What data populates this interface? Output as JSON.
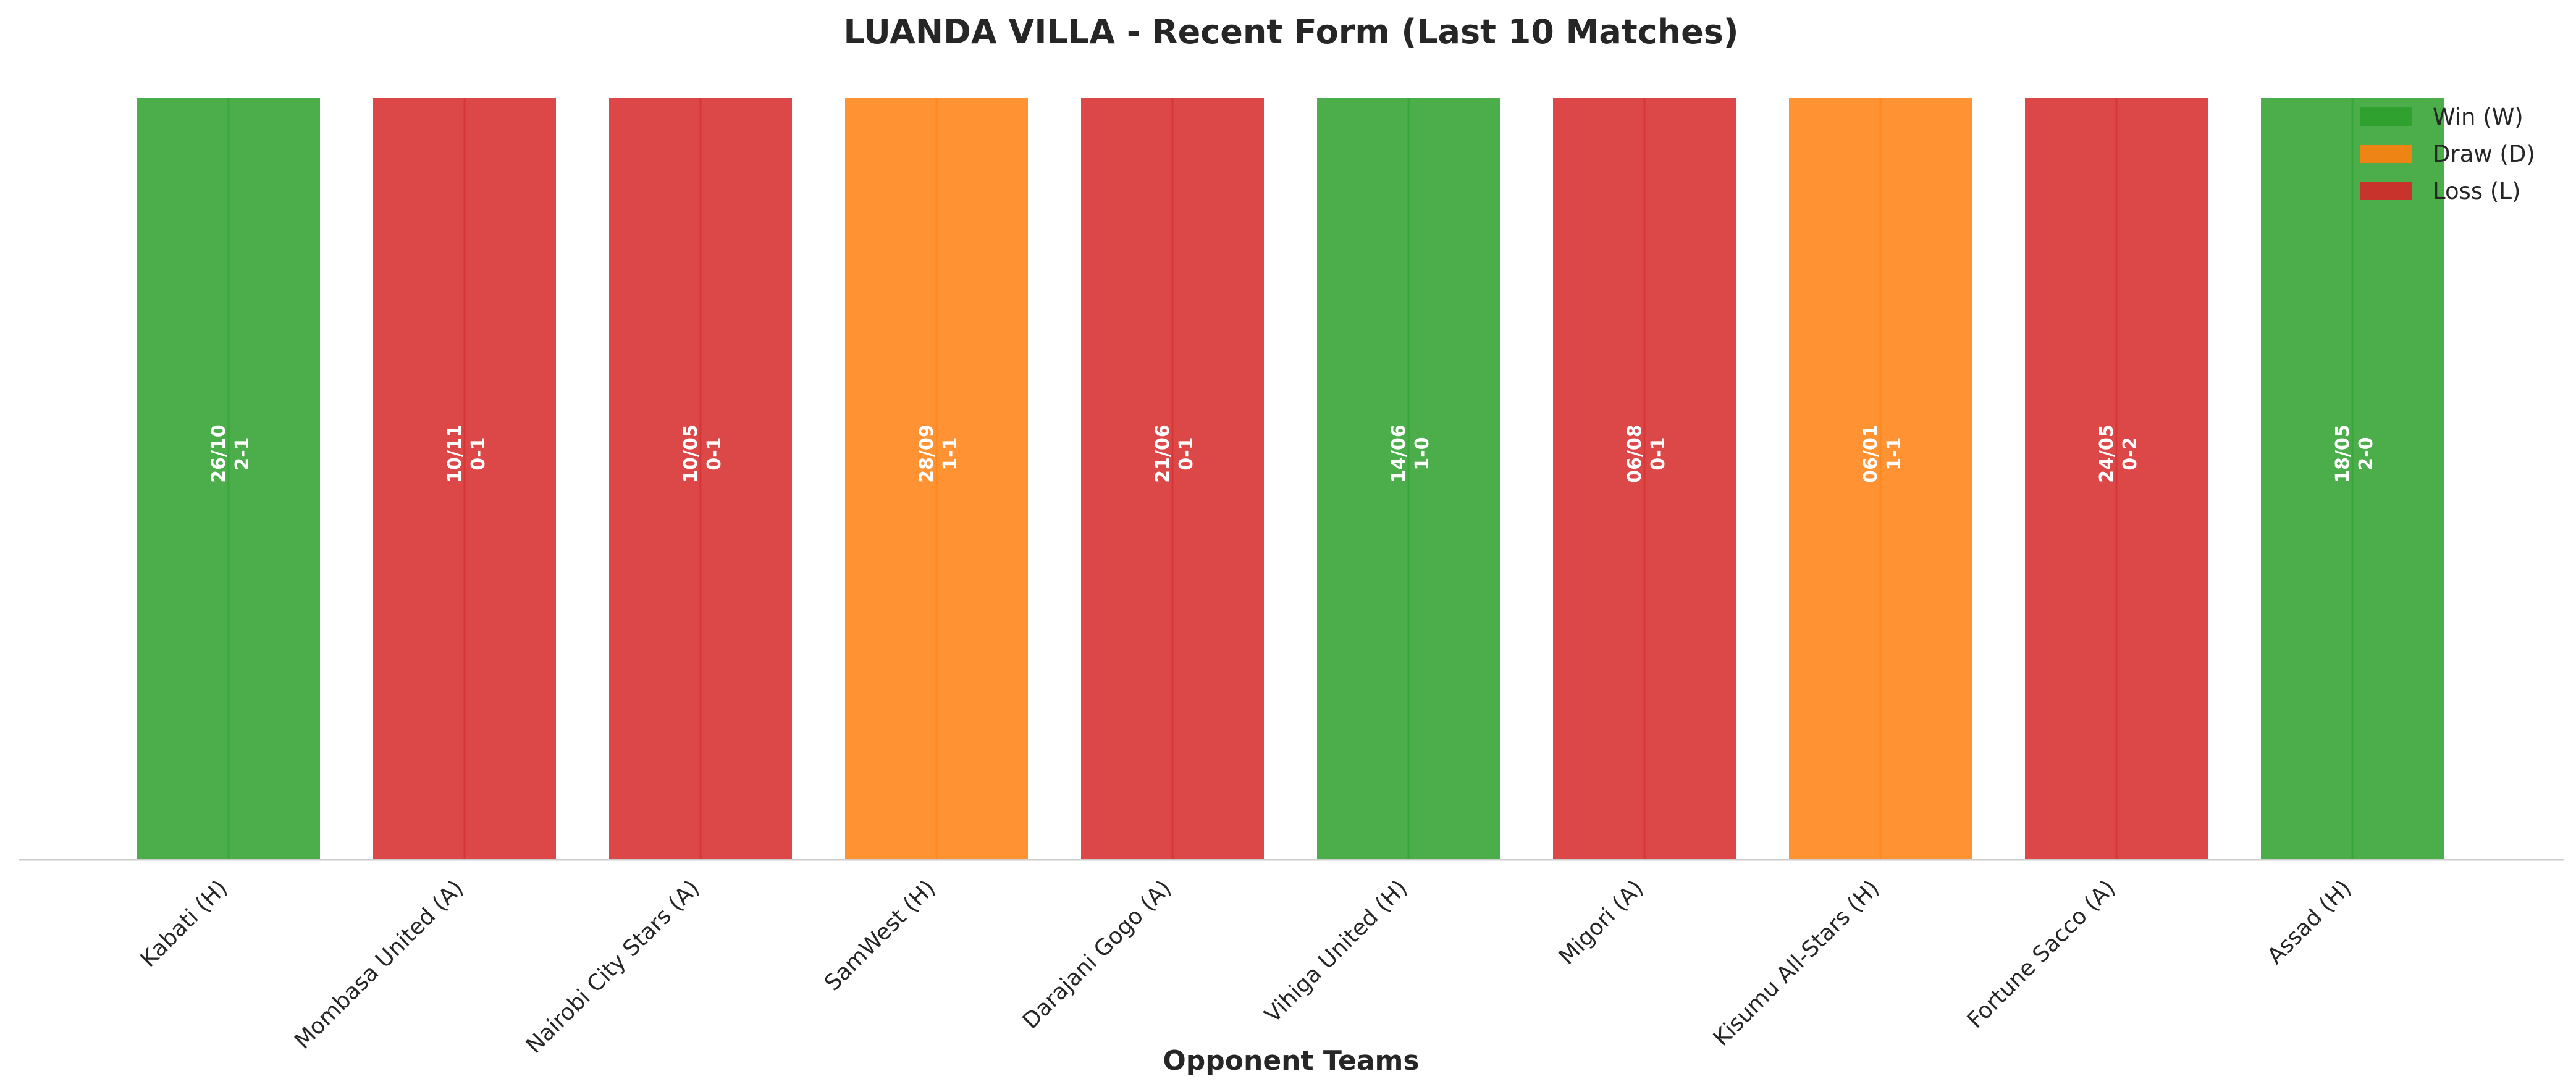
{
  "chart_data": {
    "type": "bar",
    "title": "LUANDA VILLA - Recent Form (Last 10 Matches)",
    "xlabel": "Opponent Teams",
    "ylabel": "",
    "ylim": [
      0,
      1
    ],
    "grid": false,
    "legend_position": "top-right",
    "categories": [
      "Kabati (H)",
      "Mombasa United (A)",
      "Nairobi City Stars (A)",
      "SamWest (H)",
      "Darajani Gogo (A)",
      "Vihiga United (H)",
      "Migori (A)",
      "Kisumu All-Stars (H)",
      "Fortune Sacco (A)",
      "Assad (H)"
    ],
    "values": [
      1,
      1,
      1,
      1,
      1,
      1,
      1,
      1,
      1,
      1
    ],
    "results": [
      "W",
      "L",
      "L",
      "D",
      "L",
      "W",
      "L",
      "D",
      "L",
      "W"
    ],
    "dates": [
      "26/10",
      "10/11",
      "10/05",
      "28/09",
      "21/06",
      "14/06",
      "06/08",
      "06/01",
      "24/05",
      "18/05"
    ],
    "scores": [
      "2-1",
      "0-1",
      "0-1",
      "1-1",
      "0-1",
      "1-0",
      "0-1",
      "1-1",
      "0-2",
      "2-0"
    ],
    "legend": [
      {
        "key": "W",
        "label": "Win (W)",
        "color": "#2ca02c"
      },
      {
        "key": "D",
        "label": "Draw (D)",
        "color": "#ff7f0e"
      },
      {
        "key": "L",
        "label": "Loss (L)",
        "color": "#d62728"
      }
    ],
    "colors": {
      "W": "#2ca02c",
      "D": "#ff7f0e",
      "L": "#d62728",
      "axis": "#cccccc",
      "bar_edge": "#ffffff"
    }
  }
}
